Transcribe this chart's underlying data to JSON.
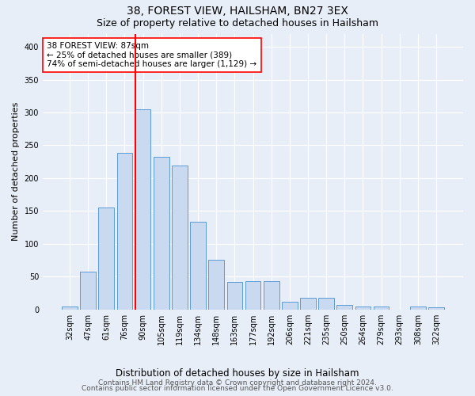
{
  "title": "38, FOREST VIEW, HAILSHAM, BN27 3EX",
  "subtitle": "Size of property relative to detached houses in Hailsham",
  "xlabel": "Distribution of detached houses by size in Hailsham",
  "ylabel": "Number of detached properties",
  "categories": [
    "32sqm",
    "47sqm",
    "61sqm",
    "76sqm",
    "90sqm",
    "105sqm",
    "119sqm",
    "134sqm",
    "148sqm",
    "163sqm",
    "177sqm",
    "192sqm",
    "206sqm",
    "221sqm",
    "235sqm",
    "250sqm",
    "264sqm",
    "279sqm",
    "293sqm",
    "308sqm",
    "322sqm"
  ],
  "values": [
    4,
    57,
    155,
    238,
    305,
    232,
    219,
    134,
    76,
    42,
    43,
    43,
    12,
    18,
    18,
    7,
    4,
    4,
    0,
    4,
    3
  ],
  "bar_color": "#c9d9f0",
  "bar_edge_color": "#5b9bd5",
  "property_line_color": "red",
  "annotation_text": "38 FOREST VIEW: 87sqm\n← 25% of detached houses are smaller (389)\n74% of semi-detached houses are larger (1,129) →",
  "annotation_box_facecolor": "white",
  "annotation_box_edgecolor": "red",
  "ylim": [
    0,
    420
  ],
  "yticks": [
    0,
    50,
    100,
    150,
    200,
    250,
    300,
    350,
    400
  ],
  "background_color": "#e8eef8",
  "grid_color": "white",
  "footer_line1": "Contains HM Land Registry data © Crown copyright and database right 2024.",
  "footer_line2": "Contains public sector information licensed under the Open Government Licence v3.0.",
  "title_fontsize": 10,
  "subtitle_fontsize": 9,
  "xlabel_fontsize": 8.5,
  "ylabel_fontsize": 8,
  "tick_fontsize": 7,
  "annotation_fontsize": 7.5,
  "footer_fontsize": 6.5
}
